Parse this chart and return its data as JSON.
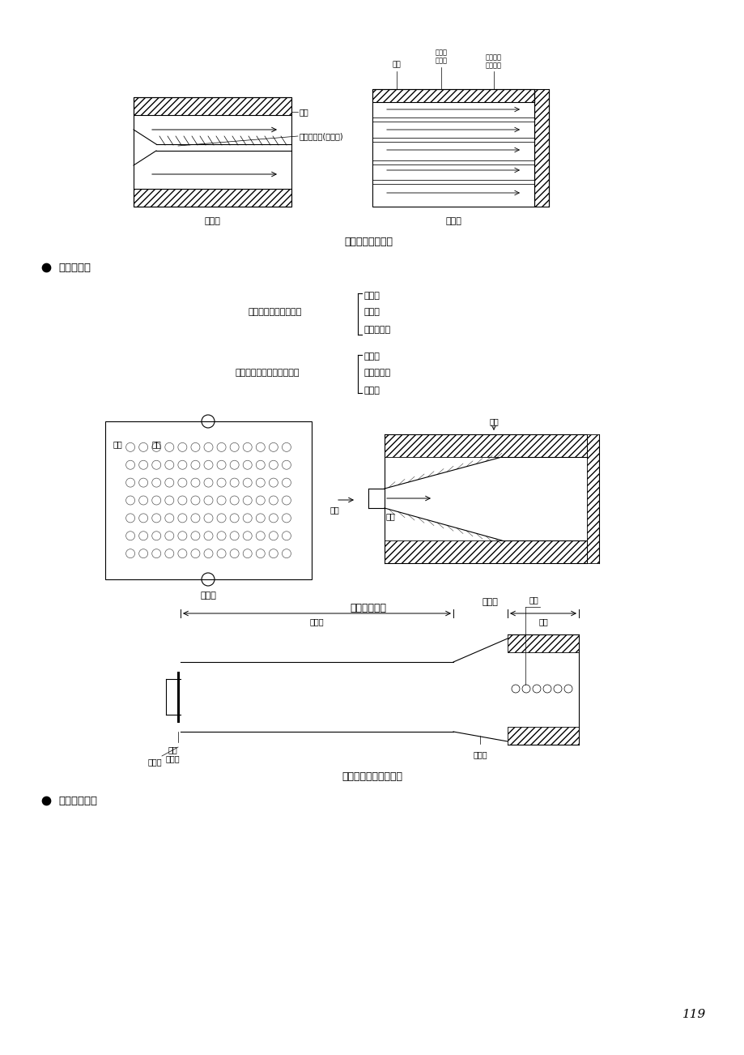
{
  "bg_color": "#ffffff",
  "page_number": "119",
  "caption1": "调风器工作原理图",
  "caption2": "扩散式燃烧器",
  "caption3": "大气燃烧器结构示意图",
  "label_pingliushi": "平流式",
  "label_xuanliushi": "旋流式",
  "label_panguanshi": "排管式",
  "label_taoguanshi": "套管式",
  "section1": "燃气燃烧器",
  "section2": "双燃料燃烧器",
  "class1_left": "燃烧器按燃烧方式分类",
  "class1_right": [
    "扩散式",
    "大气式",
    "完全预混式"
  ],
  "class2_left": "燃器器按空气供给方式分类",
  "class2_right": [
    "引射式",
    "自然引风式",
    "鼓风式"
  ],
  "pingliushi_label1": "油管",
  "pingliushi_label2": "叶片旋流器(稳焰器)",
  "xuanliushi_label1": "油管",
  "xuanliushi_label2": "二次风\n旋流器",
  "xuanliushi_label3": "根部风叶\n片旋流器",
  "panguanshi_label1": "排管",
  "panguanshi_label2": "小孔",
  "taoguanshi_label1": "空气",
  "taoguanshi_label2": "燃气",
  "atm_label1": "引射器",
  "atm_label2": "头部",
  "atm_label3": "一次\n空气口",
  "atm_label4": "扩压管",
  "atm_label5": "火孔",
  "atm_label6": "调风板"
}
